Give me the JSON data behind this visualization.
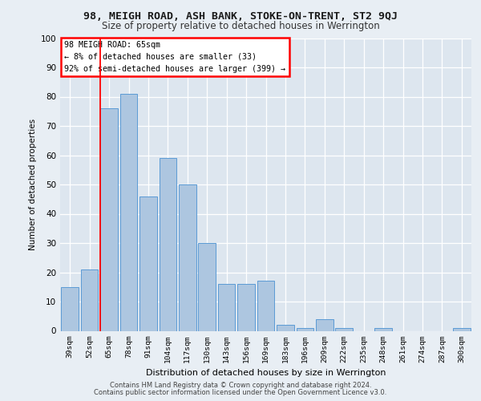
{
  "title_line1": "98, MEIGH ROAD, ASH BANK, STOKE-ON-TRENT, ST2 9QJ",
  "title_line2": "Size of property relative to detached houses in Werrington",
  "xlabel": "Distribution of detached houses by size in Werrington",
  "ylabel": "Number of detached properties",
  "categories": [
    "39sqm",
    "52sqm",
    "65sqm",
    "78sqm",
    "91sqm",
    "104sqm",
    "117sqm",
    "130sqm",
    "143sqm",
    "156sqm",
    "169sqm",
    "183sqm",
    "196sqm",
    "209sqm",
    "222sqm",
    "235sqm",
    "248sqm",
    "261sqm",
    "274sqm",
    "287sqm",
    "300sqm"
  ],
  "values": [
    15,
    21,
    76,
    81,
    46,
    59,
    50,
    30,
    16,
    16,
    17,
    2,
    1,
    4,
    1,
    0,
    1,
    0,
    0,
    0,
    1
  ],
  "bar_color": "#adc6e0",
  "bar_edge_color": "#5b9bd5",
  "annotation_title": "98 MEIGH ROAD: 65sqm",
  "annotation_line2": "← 8% of detached houses are smaller (33)",
  "annotation_line3": "92% of semi-detached houses are larger (399) →",
  "ylim": [
    0,
    100
  ],
  "yticks": [
    0,
    10,
    20,
    30,
    40,
    50,
    60,
    70,
    80,
    90,
    100
  ],
  "footer_line1": "Contains HM Land Registry data © Crown copyright and database right 2024.",
  "footer_line2": "Contains public sector information licensed under the Open Government Licence v3.0.",
  "bg_color": "#e8eef4",
  "plot_bg_color": "#dde6ef",
  "red_line_index": 2
}
